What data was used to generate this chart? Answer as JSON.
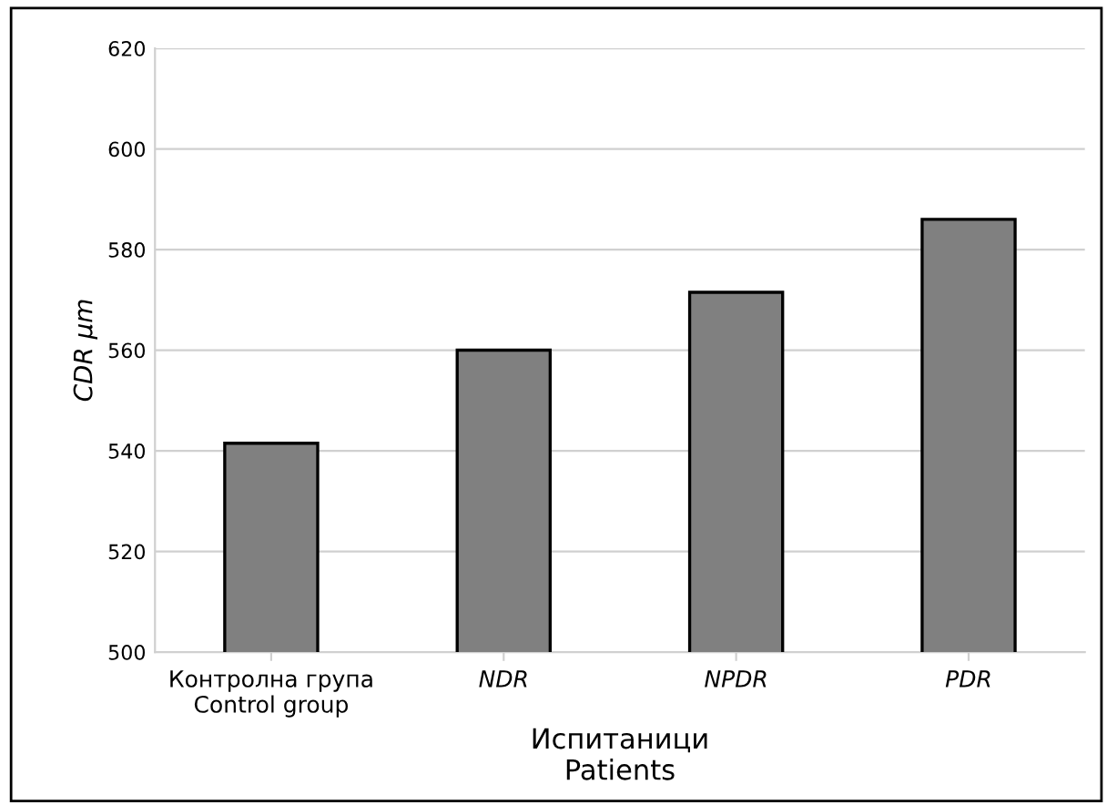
{
  "chart_data": {
    "type": "bar",
    "xlabel": "Испитаници\nPatients",
    "ylabel": "CDR μm",
    "categories": [
      "Контролна група\nControl group",
      "NDR",
      "NPDR",
      "PDR"
    ],
    "values": [
      541.5,
      560,
      571.5,
      586
    ],
    "color": "#808080",
    "ylim": [
      500,
      620
    ],
    "yticks": [
      500,
      520,
      540,
      560,
      580,
      600,
      620
    ],
    "grid": "y"
  }
}
